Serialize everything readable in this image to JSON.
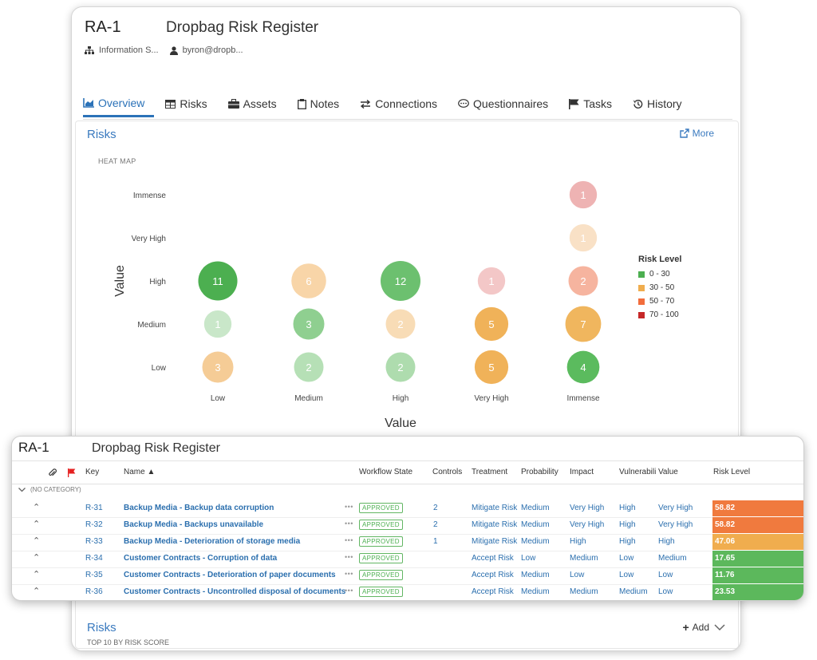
{
  "record": {
    "key": "RA-1",
    "title": "Dropbag Risk Register",
    "org": "Information S...",
    "user": "byron@dropb..."
  },
  "tabs": [
    {
      "label": "Overview",
      "icon": "chart-area-icon",
      "active": true
    },
    {
      "label": "Risks",
      "icon": "table-icon"
    },
    {
      "label": "Assets",
      "icon": "briefcase-icon"
    },
    {
      "label": "Notes",
      "icon": "clipboard-icon"
    },
    {
      "label": "Connections",
      "icon": "exchange-icon"
    },
    {
      "label": "Questionnaires",
      "icon": "comment-dots-icon"
    },
    {
      "label": "Tasks",
      "icon": "flag-icon"
    },
    {
      "label": "History",
      "icon": "history-icon"
    }
  ],
  "risks_panel": {
    "title": "Risks",
    "more": "More",
    "heatmap_label": "HEAT MAP"
  },
  "chart_data": {
    "type": "bubble-heatmap",
    "xlabel": "Value",
    "ylabel": "Value",
    "x_categories": [
      "Low",
      "Medium",
      "High",
      "Very High",
      "Immense"
    ],
    "y_categories": [
      "Low",
      "Medium",
      "High",
      "Very High",
      "Immense"
    ],
    "cells": [
      {
        "x": "Low",
        "y": "High",
        "count": 11,
        "color": "#4caf50"
      },
      {
        "x": "Medium",
        "y": "High",
        "count": 6,
        "color": "#f8d5a8"
      },
      {
        "x": "High",
        "y": "High",
        "count": 12,
        "color": "#6cc06f"
      },
      {
        "x": "Very High",
        "y": "High",
        "count": 1,
        "color": "#f3c7c7"
      },
      {
        "x": "Immense",
        "y": "High",
        "count": 2,
        "color": "#f6b49f"
      },
      {
        "x": "Immense",
        "y": "Immense",
        "count": 1,
        "color": "#eeb3b3"
      },
      {
        "x": "Immense",
        "y": "Very High",
        "count": 1,
        "color": "#f9e1c6"
      },
      {
        "x": "Low",
        "y": "Medium",
        "count": 1,
        "color": "#c9e7c9"
      },
      {
        "x": "Medium",
        "y": "Medium",
        "count": 3,
        "color": "#8fcf90"
      },
      {
        "x": "High",
        "y": "Medium",
        "count": 2,
        "color": "#f8dcb6"
      },
      {
        "x": "Very High",
        "y": "Medium",
        "count": 5,
        "color": "#f0b259"
      },
      {
        "x": "Immense",
        "y": "Medium",
        "count": 7,
        "color": "#f0b65e"
      },
      {
        "x": "Low",
        "y": "Low",
        "count": 3,
        "color": "#f5cc96"
      },
      {
        "x": "Medium",
        "y": "Low",
        "count": 2,
        "color": "#b6e0b6"
      },
      {
        "x": "High",
        "y": "Low",
        "count": 2,
        "color": "#aedcae"
      },
      {
        "x": "Very High",
        "y": "Low",
        "count": 5,
        "color": "#f0b259"
      },
      {
        "x": "Immense",
        "y": "Low",
        "count": 4,
        "color": "#5bbb5e"
      }
    ],
    "legend_title": "Risk Level",
    "legend": [
      {
        "label": "0 - 30",
        "color": "#4caf50"
      },
      {
        "label": "30 - 50",
        "color": "#f0ad4e"
      },
      {
        "label": "50 - 70",
        "color": "#f26d3c"
      },
      {
        "label": "70 - 100",
        "color": "#c62828"
      }
    ]
  },
  "bottom": {
    "title": "Risks",
    "subtitle": "TOP 10 BY RISK SCORE",
    "add": "Add"
  },
  "register": {
    "key": "RA-1",
    "title": "Dropbag Risk Register",
    "columns": {
      "key": "Key",
      "name": "Name ▲",
      "workflow": "Workflow State",
      "controls": "Controls",
      "treatment": "Treatment",
      "probability": "Probability",
      "impact": "Impact",
      "vulnerability": "Vulnerabili",
      "value": "Value",
      "risk_level": "Risk Level"
    },
    "category": "(NO CATEGORY)",
    "rows": [
      {
        "key": "R-31",
        "name": "Backup Media - Backup data corruption",
        "state": "APPROVED",
        "controls": "2",
        "treatment": "Mitigate Risk",
        "probability": "Medium",
        "impact": "Very High",
        "vulnerability": "High",
        "value": "Very High",
        "risk": "58.82",
        "risk_color": "#f07a3e"
      },
      {
        "key": "R-32",
        "name": "Backup Media - Backups unavailable",
        "state": "APPROVED",
        "controls": "2",
        "treatment": "Mitigate Risk",
        "probability": "Medium",
        "impact": "Very High",
        "vulnerability": "High",
        "value": "Very High",
        "risk": "58.82",
        "risk_color": "#f07a3e"
      },
      {
        "key": "R-33",
        "name": "Backup Media - Deterioration of storage media",
        "state": "APPROVED",
        "controls": "1",
        "treatment": "Mitigate Risk",
        "probability": "Medium",
        "impact": "High",
        "vulnerability": "High",
        "value": "High",
        "risk": "47.06",
        "risk_color": "#f0ad4e"
      },
      {
        "key": "R-34",
        "name": "Customer Contracts - Corruption of data",
        "state": "APPROVED",
        "controls": "",
        "treatment": "Accept Risk",
        "probability": "Low",
        "impact": "Medium",
        "vulnerability": "Low",
        "value": "Medium",
        "risk": "17.65",
        "risk_color": "#5cb85c"
      },
      {
        "key": "R-35",
        "name": "Customer Contracts - Deterioration of paper documents",
        "state": "APPROVED",
        "controls": "",
        "treatment": "Accept Risk",
        "probability": "Medium",
        "impact": "Low",
        "vulnerability": "Low",
        "value": "Low",
        "risk": "11.76",
        "risk_color": "#5cb85c"
      },
      {
        "key": "R-36",
        "name": "Customer Contracts - Uncontrolled disposal of documents",
        "state": "APPROVED",
        "controls": "",
        "treatment": "Accept Risk",
        "probability": "Medium",
        "impact": "Medium",
        "vulnerability": "Medium",
        "value": "Low",
        "risk": "23.53",
        "risk_color": "#5cb85c"
      }
    ]
  }
}
